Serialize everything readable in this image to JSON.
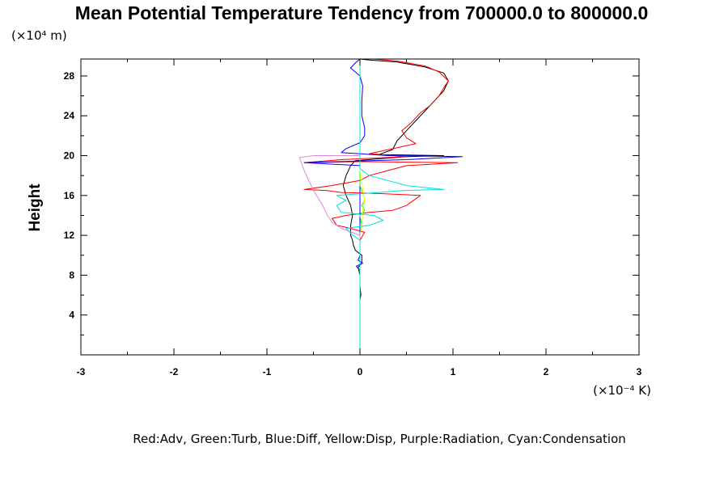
{
  "chart_data": {
    "type": "line",
    "title": "Mean Potential Temperature Tendency from 700000.0 to 800000.0",
    "y_unit": "(×10⁴ m)",
    "x_unit": "(×10⁻⁴ K)",
    "ylabel": "Height",
    "xlabel": "",
    "caption": "Red:Adv, Green:Turb, Blue:Diff, Yellow:Disp, Purple:Radiation, Cyan:Condensation",
    "xlim": [
      -3,
      3
    ],
    "ylim": [
      0,
      29.7
    ],
    "x_ticks": [
      {
        "value": -3,
        "label": "-3"
      },
      {
        "value": -2,
        "label": "-2"
      },
      {
        "value": -1,
        "label": "-1"
      },
      {
        "value": 0,
        "label": "0"
      },
      {
        "value": 1,
        "label": "1"
      },
      {
        "value": 2,
        "label": "2"
      },
      {
        "value": 3,
        "label": "3"
      }
    ],
    "y_ticks": [
      {
        "value": 4,
        "label": "4"
      },
      {
        "value": 8,
        "label": "8"
      },
      {
        "value": 12,
        "label": "12"
      },
      {
        "value": 16,
        "label": "16"
      },
      {
        "value": 20,
        "label": "20"
      },
      {
        "value": 24,
        "label": "24"
      },
      {
        "value": 28,
        "label": "28"
      }
    ],
    "grid": false,
    "series": [
      {
        "key": "total",
        "color": "#000000",
        "points": [
          [
            0,
            0
          ],
          [
            0,
            5.5
          ],
          [
            0.01,
            6.0
          ],
          [
            0,
            7.0
          ],
          [
            0,
            8.0
          ],
          [
            -0.02,
            8.8
          ],
          [
            0.02,
            9.2
          ],
          [
            0.02,
            10.0
          ],
          [
            -0.05,
            10.5
          ],
          [
            -0.07,
            11.0
          ],
          [
            -0.08,
            11.5
          ],
          [
            -0.1,
            12.0
          ],
          [
            -0.1,
            13.0
          ],
          [
            -0.08,
            14.0
          ],
          [
            -0.1,
            15.0
          ],
          [
            -0.15,
            16.0
          ],
          [
            -0.18,
            17.0
          ],
          [
            -0.15,
            18.0
          ],
          [
            -0.1,
            19.0
          ],
          [
            -0.05,
            19.5
          ],
          [
            0.5,
            19.9
          ],
          [
            0.9,
            20.0
          ],
          [
            0.2,
            20.1
          ],
          [
            0.35,
            20.6
          ],
          [
            0.4,
            21.5
          ],
          [
            0.5,
            22.5
          ],
          [
            0.6,
            23.5
          ],
          [
            0.7,
            24.5
          ],
          [
            0.8,
            25.5
          ],
          [
            0.9,
            26.5
          ],
          [
            0.95,
            27.5
          ],
          [
            0.9,
            28.3
          ],
          [
            0.7,
            28.9
          ],
          [
            0.4,
            29.4
          ],
          [
            0.1,
            29.6
          ],
          [
            0,
            29.7
          ]
        ]
      },
      {
        "key": "advection",
        "color": "#ff0000",
        "points": [
          [
            0,
            0
          ],
          [
            0,
            5.5
          ],
          [
            0,
            7.0
          ],
          [
            0,
            8.0
          ],
          [
            0,
            9.0
          ],
          [
            0,
            10.0
          ],
          [
            0,
            11.5
          ],
          [
            0.05,
            12.3
          ],
          [
            -0.1,
            12.7
          ],
          [
            -0.25,
            13.0
          ],
          [
            -0.3,
            13.7
          ],
          [
            -0.15,
            14.0
          ],
          [
            0.1,
            14.3
          ],
          [
            0.35,
            14.5
          ],
          [
            0.5,
            15.0
          ],
          [
            0.65,
            16.0
          ],
          [
            0.2,
            16.2
          ],
          [
            -0.2,
            16.3
          ],
          [
            -0.35,
            16.5
          ],
          [
            -0.6,
            16.6
          ],
          [
            -0.3,
            17.0
          ],
          [
            0,
            17.5
          ],
          [
            0.1,
            18.0
          ],
          [
            0.3,
            18.5
          ],
          [
            0.5,
            19.0
          ],
          [
            1.05,
            19.3
          ],
          [
            0,
            19.4
          ],
          [
            -0.6,
            19.3
          ],
          [
            -0.2,
            19.6
          ],
          [
            0.5,
            19.9
          ],
          [
            0.1,
            20.2
          ],
          [
            0.2,
            20.4
          ],
          [
            0.4,
            20.8
          ],
          [
            0.6,
            21.2
          ],
          [
            0.5,
            21.8
          ],
          [
            0.45,
            22.5
          ],
          [
            0.55,
            23.3
          ],
          [
            0.65,
            24.3
          ],
          [
            0.75,
            25.0
          ],
          [
            0.85,
            26.0
          ],
          [
            0.9,
            26.8
          ],
          [
            0.95,
            27.5
          ],
          [
            0.85,
            28.4
          ],
          [
            0.7,
            29.0
          ],
          [
            0.4,
            29.5
          ],
          [
            0.15,
            29.7
          ]
        ]
      },
      {
        "key": "diffusion",
        "color": "#0000ff",
        "points": [
          [
            0,
            0
          ],
          [
            0,
            7.0
          ],
          [
            0,
            8.5
          ],
          [
            -0.04,
            8.9
          ],
          [
            0.03,
            9.2
          ],
          [
            -0.02,
            9.5
          ],
          [
            0,
            10.0
          ],
          [
            0,
            18.5
          ],
          [
            0,
            19.0
          ],
          [
            -0.6,
            19.3
          ],
          [
            0.5,
            19.6
          ],
          [
            1.1,
            19.9
          ],
          [
            0.3,
            20.0
          ],
          [
            -0.2,
            20.3
          ],
          [
            -0.15,
            20.7
          ],
          [
            0,
            21.3
          ],
          [
            0.05,
            22.0
          ],
          [
            0.05,
            22.8
          ],
          [
            0.02,
            24.0
          ],
          [
            0.02,
            25.5
          ],
          [
            0.03,
            27.0
          ],
          [
            0,
            28.0
          ],
          [
            -0.1,
            28.8
          ],
          [
            -0.05,
            29.3
          ],
          [
            0,
            29.7
          ]
        ]
      },
      {
        "key": "turbulence",
        "color": "#00ff00",
        "points": [
          [
            0,
            0
          ],
          [
            0,
            10.0
          ],
          [
            0,
            11.0
          ],
          [
            0,
            12.0
          ],
          [
            0.02,
            13.0
          ],
          [
            0,
            14.0
          ],
          [
            0.05,
            14.5
          ],
          [
            0.02,
            15.0
          ],
          [
            0.05,
            15.5
          ],
          [
            0.04,
            16.0
          ],
          [
            0.02,
            16.5
          ],
          [
            0,
            17.0
          ],
          [
            0,
            18.0
          ],
          [
            0,
            19.0
          ],
          [
            0,
            19.5
          ],
          [
            0,
            29.7
          ]
        ]
      },
      {
        "key": "dissipation",
        "color": "#ffff00",
        "points": [
          [
            0,
            0
          ],
          [
            0,
            12.0
          ],
          [
            0.02,
            13.0
          ],
          [
            0.03,
            14.5
          ],
          [
            0.05,
            15.5
          ],
          [
            0.03,
            16.5
          ],
          [
            0.02,
            17.5
          ],
          [
            0,
            18.5
          ],
          [
            0,
            29.7
          ]
        ]
      },
      {
        "key": "radiation",
        "color": "#dd88dd",
        "points": [
          [
            0,
            0
          ],
          [
            0,
            12.0
          ],
          [
            -0.2,
            12.7
          ],
          [
            -0.3,
            13.3
          ],
          [
            -0.35,
            14.0
          ],
          [
            -0.4,
            15.0
          ],
          [
            -0.5,
            16.5
          ],
          [
            -0.55,
            17.5
          ],
          [
            -0.6,
            18.5
          ],
          [
            -0.65,
            19.8
          ],
          [
            -0.5,
            20.0
          ],
          [
            0,
            20.0
          ],
          [
            0,
            29.7
          ]
        ]
      },
      {
        "key": "condensation",
        "color": "#00e0e0",
        "points": [
          [
            0,
            0
          ],
          [
            0,
            10.0
          ],
          [
            0,
            11.5
          ],
          [
            -0.1,
            12.2
          ],
          [
            -0.15,
            12.7
          ],
          [
            0.1,
            13.0
          ],
          [
            0.25,
            13.5
          ],
          [
            0.15,
            14.0
          ],
          [
            -0.2,
            14.3
          ],
          [
            -0.25,
            15.0
          ],
          [
            -0.15,
            15.5
          ],
          [
            -0.25,
            16.0
          ],
          [
            0.2,
            16.3
          ],
          [
            0.45,
            16.5
          ],
          [
            0.9,
            16.6
          ],
          [
            0.5,
            17.0
          ],
          [
            0.3,
            17.5
          ],
          [
            0.1,
            18.0
          ],
          [
            0,
            18.7
          ],
          [
            0,
            19.5
          ],
          [
            0,
            29.7
          ]
        ]
      }
    ]
  }
}
